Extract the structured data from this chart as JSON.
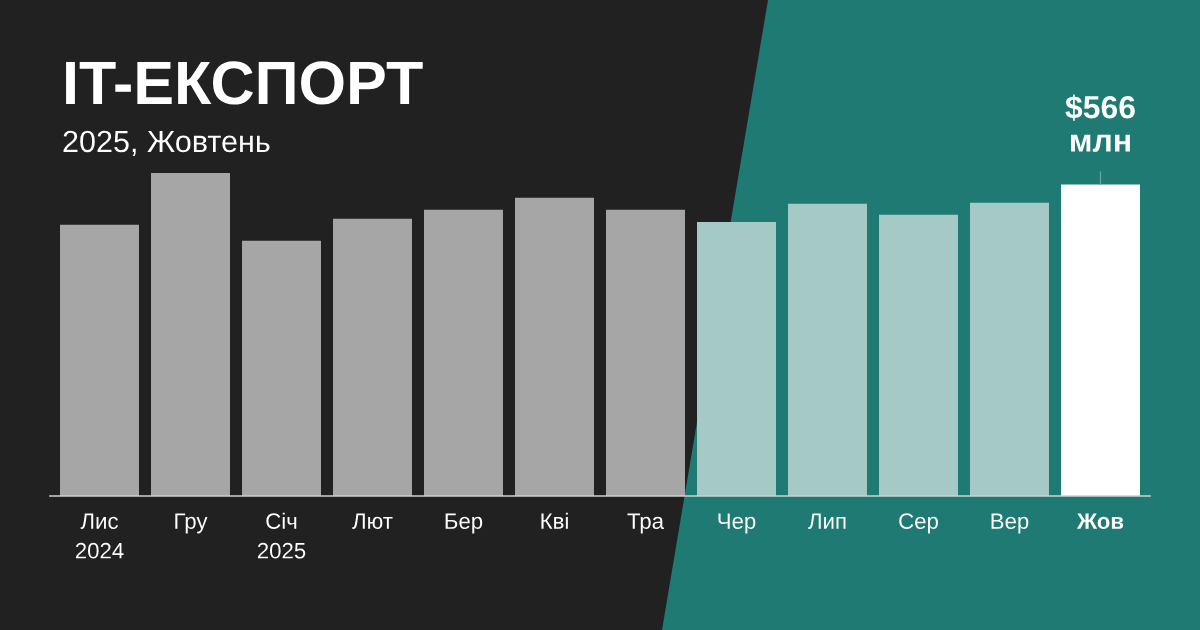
{
  "chart_data": {
    "type": "bar",
    "title": "IT-ЕКСПОРТ",
    "subtitle": "2025, Жовтень",
    "categories": [
      "Лис\n2024",
      "Гру",
      "Січ\n2025",
      "Лют",
      "Бер",
      "Кві",
      "Тра",
      "Чер",
      "Лип",
      "Сер",
      "Вер",
      "Жов"
    ],
    "values": [
      493,
      587,
      464,
      504,
      520,
      542,
      520,
      498,
      531,
      511,
      533,
      566
    ],
    "colors": [
      "#a6a6a6",
      "#a6a6a6",
      "#a6a6a6",
      "#a6a6a6",
      "#a6a6a6",
      "#a6a6a6",
      "#a6a6a6",
      "#a5cac6",
      "#a5cac6",
      "#a5cac6",
      "#a5cac6",
      "#ffffff"
    ],
    "value_labels": [
      null,
      null,
      null,
      null,
      null,
      null,
      null,
      null,
      null,
      null,
      null,
      "$566\nмлн"
    ],
    "tick_labels": "x"
  }
}
